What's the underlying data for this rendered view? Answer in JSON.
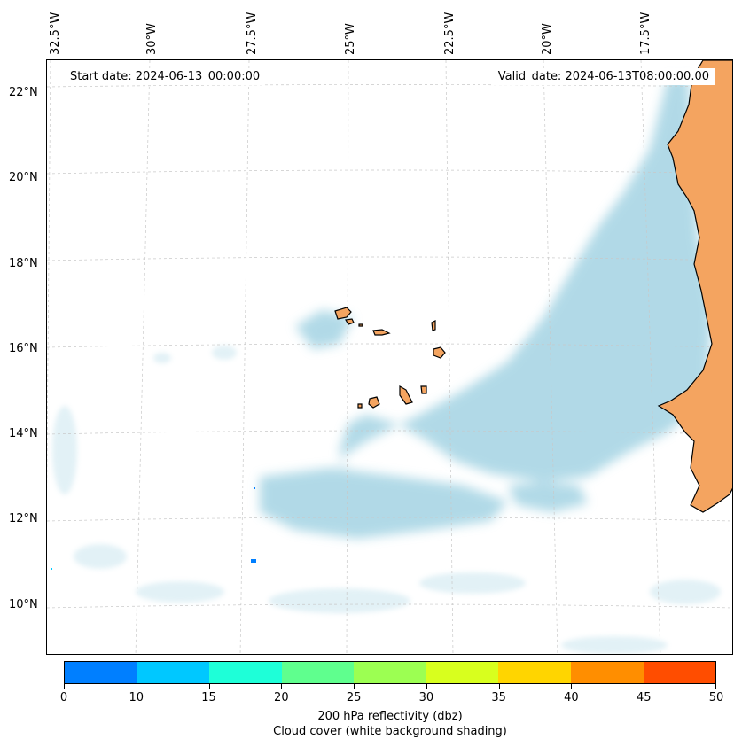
{
  "map": {
    "start_date": "Start date: 2024-06-13_00:00:00",
    "valid_date": "Valid_date: 2024-06-13T08:00:00.00",
    "lon_labels": [
      "32.5°W",
      "30°W",
      "27.5°W",
      "25°W",
      "22.5°W",
      "20°W",
      "17.5°W"
    ],
    "lat_labels": [
      "22°N",
      "20°N",
      "18°N",
      "16°N",
      "14°N",
      "12°N",
      "10°N"
    ],
    "colors": {
      "land": "#f4a460",
      "cloud": "#add8e6",
      "coast": "#000000",
      "grid": "#c8c8c8"
    }
  },
  "colorbar": {
    "ticks": [
      "0",
      "10",
      "15",
      "20",
      "25",
      "30",
      "35",
      "40",
      "45",
      "50"
    ],
    "colors": [
      "#007fff",
      "#00c8ff",
      "#1effd8",
      "#5fff8e",
      "#9cff52",
      "#d8ff1e",
      "#ffd500",
      "#ff8e00",
      "#ff4d00"
    ],
    "label": "200 hPa reflectivity (dbz)",
    "sublabel": "Cloud cover (white background shading)"
  }
}
